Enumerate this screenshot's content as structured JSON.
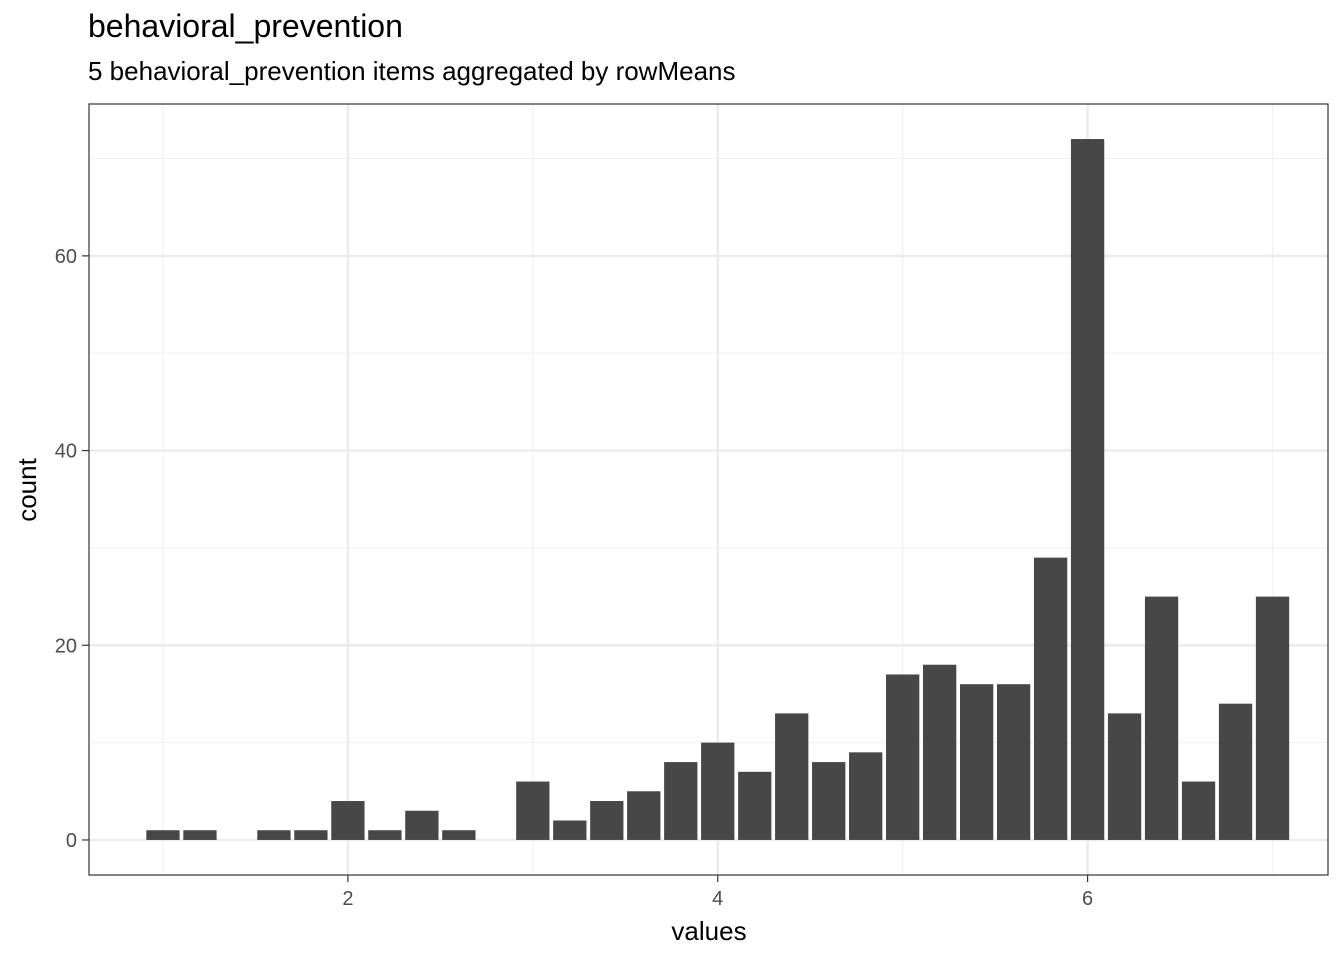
{
  "chart_data": {
    "type": "bar",
    "title": "behavioral_prevention",
    "subtitle": "5 behavioral_prevention items aggregated by rowMeans",
    "xlabel": "values",
    "ylabel": "count",
    "x": [
      1.0,
      1.2,
      1.6,
      1.8,
      2.0,
      2.2,
      2.4,
      2.6,
      3.0,
      3.2,
      3.4,
      3.6,
      3.8,
      4.0,
      4.2,
      4.4,
      4.6,
      4.8,
      5.0,
      5.2,
      5.4,
      5.6,
      5.8,
      6.0,
      6.2,
      6.4,
      6.6,
      6.8,
      7.0
    ],
    "values": [
      1,
      1,
      1,
      1,
      4,
      1,
      3,
      1,
      6,
      2,
      4,
      5,
      8,
      10,
      7,
      13,
      8,
      9,
      17,
      18,
      16,
      16,
      29,
      72,
      13,
      25,
      6,
      14,
      25
    ],
    "xlim": [
      0.6,
      7.3
    ],
    "ylim": [
      -3.6,
      75.6
    ],
    "x_ticks": [
      2,
      4,
      6
    ],
    "y_ticks": [
      0,
      20,
      40,
      60
    ],
    "grid": true,
    "bar_color": "#474747",
    "panel_border_color": "#333333",
    "grid_major_color": "#ebebeb",
    "grid_minor_color": "#f2f2f2"
  }
}
